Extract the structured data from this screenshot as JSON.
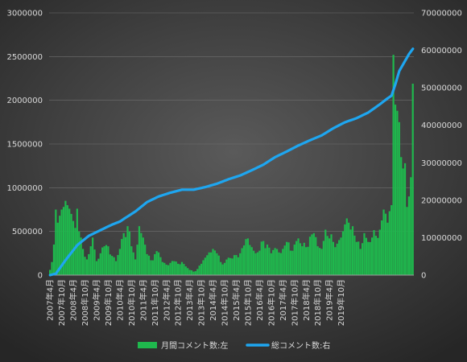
{
  "chart_data": {
    "type": "bar",
    "title": "",
    "colors": {
      "bars": "#1fb84d",
      "line": "#1ea6f0",
      "grid": "#6f6f6f",
      "text": "#d9d9d9"
    },
    "y_left": {
      "min": 0,
      "max": 3000000,
      "ticks": [
        "0",
        "500000",
        "1000000",
        "1500000",
        "2000000",
        "2500000",
        "3000000"
      ]
    },
    "y_right": {
      "min": 0,
      "max": 70000000,
      "ticks": [
        "0",
        "10000000",
        "20000000",
        "30000000",
        "40000000",
        "50000000",
        "60000000",
        "70000000"
      ]
    },
    "x_labels": [
      "2007年4月",
      "2007年10月",
      "2008年4月",
      "2008年10月",
      "2009年4月",
      "2009年10月",
      "2010年4月",
      "2010年10月",
      "2011年4月",
      "2011年10月",
      "2012年4月",
      "2012年10月",
      "2013年4月",
      "2013年10月",
      "2014年4月",
      "2014年10月",
      "2015年4月",
      "2015年10月",
      "2016年4月",
      "2016年10月",
      "2017年4月",
      "2017年10月",
      "2018年4月",
      "2018年10月",
      "2019年4月",
      "2019年10月"
    ],
    "legend": {
      "position": "bottom",
      "bar_label": "月間コメント数:左",
      "line_label": "総コメント数:右"
    },
    "anchors": {
      "bars": [
        [
          0,
          60000
        ],
        [
          1,
          150000
        ],
        [
          2,
          350000
        ],
        [
          3,
          750000
        ],
        [
          4,
          600000
        ],
        [
          5,
          680000
        ],
        [
          6,
          750000
        ],
        [
          7,
          780000
        ],
        [
          8,
          850000
        ],
        [
          9,
          800000
        ],
        [
          10,
          760000
        ],
        [
          11,
          700000
        ],
        [
          12,
          620000
        ],
        [
          13,
          540000
        ],
        [
          14,
          760000
        ],
        [
          15,
          500000
        ],
        [
          16,
          430000
        ],
        [
          17,
          300000
        ],
        [
          18,
          210000
        ],
        [
          19,
          180000
        ],
        [
          20,
          240000
        ],
        [
          22,
          430000
        ],
        [
          24,
          160000
        ],
        [
          26,
          250000
        ],
        [
          28,
          330000
        ],
        [
          30,
          330000
        ],
        [
          32,
          220000
        ],
        [
          34,
          160000
        ],
        [
          36,
          300000
        ],
        [
          38,
          480000
        ],
        [
          40,
          560000
        ],
        [
          42,
          330000
        ],
        [
          44,
          180000
        ],
        [
          46,
          560000
        ],
        [
          48,
          430000
        ],
        [
          50,
          240000
        ],
        [
          52,
          170000
        ],
        [
          54,
          240000
        ],
        [
          56,
          260000
        ],
        [
          58,
          150000
        ],
        [
          60,
          120000
        ],
        [
          62,
          140000
        ],
        [
          64,
          160000
        ],
        [
          66,
          130000
        ],
        [
          68,
          150000
        ],
        [
          70,
          100000
        ],
        [
          72,
          60000
        ],
        [
          74,
          40000
        ],
        [
          76,
          70000
        ],
        [
          78,
          130000
        ],
        [
          80,
          200000
        ],
        [
          82,
          260000
        ],
        [
          84,
          300000
        ],
        [
          86,
          250000
        ],
        [
          88,
          150000
        ],
        [
          90,
          140000
        ],
        [
          92,
          200000
        ],
        [
          94,
          190000
        ],
        [
          96,
          230000
        ],
        [
          98,
          250000
        ],
        [
          100,
          340000
        ],
        [
          102,
          420000
        ],
        [
          104,
          320000
        ],
        [
          106,
          250000
        ],
        [
          108,
          280000
        ],
        [
          110,
          390000
        ],
        [
          112,
          350000
        ],
        [
          114,
          250000
        ],
        [
          116,
          310000
        ],
        [
          118,
          260000
        ],
        [
          120,
          300000
        ],
        [
          122,
          380000
        ],
        [
          124,
          280000
        ],
        [
          126,
          350000
        ],
        [
          128,
          420000
        ],
        [
          130,
          330000
        ],
        [
          132,
          320000
        ],
        [
          134,
          440000
        ],
        [
          136,
          480000
        ],
        [
          138,
          330000
        ],
        [
          140,
          300000
        ],
        [
          142,
          520000
        ],
        [
          144,
          420000
        ],
        [
          146,
          380000
        ],
        [
          148,
          360000
        ],
        [
          150,
          430000
        ],
        [
          152,
          580000
        ],
        [
          154,
          600000
        ],
        [
          156,
          560000
        ],
        [
          158,
          380000
        ],
        [
          160,
          300000
        ],
        [
          162,
          480000
        ],
        [
          164,
          380000
        ],
        [
          166,
          430000
        ],
        [
          168,
          450000
        ],
        [
          170,
          520000
        ],
        [
          172,
          750000
        ],
        [
          174,
          600000
        ],
        [
          176,
          800000
        ],
        [
          177,
          2520000
        ],
        [
          178,
          1950000
        ],
        [
          179,
          1880000
        ],
        [
          180,
          1750000
        ],
        [
          181,
          1350000
        ],
        [
          182,
          1220000
        ],
        [
          183,
          1280000
        ],
        [
          184,
          780000
        ],
        [
          185,
          900000
        ],
        [
          186,
          1120000
        ],
        [
          187,
          2190000
        ]
      ],
      "line": [
        [
          0,
          0
        ],
        [
          3,
          400000
        ],
        [
          8,
          4000000
        ],
        [
          14,
          8000000
        ],
        [
          20,
          10500000
        ],
        [
          26,
          12000000
        ],
        [
          32,
          13500000
        ],
        [
          36,
          14300000
        ],
        [
          38,
          15000000
        ],
        [
          44,
          17000000
        ],
        [
          50,
          19500000
        ],
        [
          56,
          21000000
        ],
        [
          62,
          22000000
        ],
        [
          68,
          22800000
        ],
        [
          74,
          22800000
        ],
        [
          80,
          23500000
        ],
        [
          86,
          24400000
        ],
        [
          92,
          25600000
        ],
        [
          98,
          26600000
        ],
        [
          104,
          28000000
        ],
        [
          110,
          29500000
        ],
        [
          116,
          31500000
        ],
        [
          122,
          33000000
        ],
        [
          128,
          34600000
        ],
        [
          134,
          36000000
        ],
        [
          140,
          37300000
        ],
        [
          146,
          39200000
        ],
        [
          152,
          40800000
        ],
        [
          158,
          41900000
        ],
        [
          164,
          43400000
        ],
        [
          170,
          45600000
        ],
        [
          174,
          47200000
        ],
        [
          176,
          47900000
        ],
        [
          178,
          51000000
        ],
        [
          180,
          54500000
        ],
        [
          183,
          57200000
        ],
        [
          185,
          59000000
        ],
        [
          187,
          60400000
        ]
      ]
    }
  }
}
